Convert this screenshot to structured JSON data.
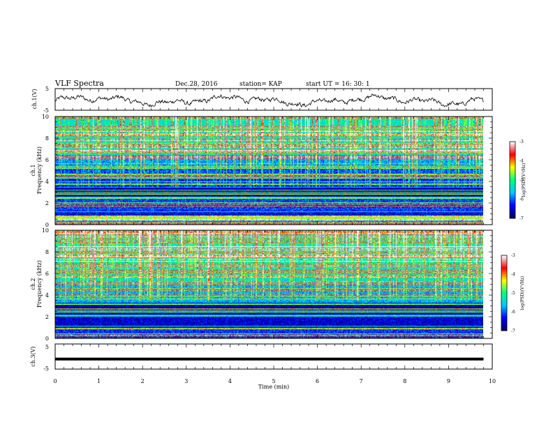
{
  "header": {
    "title": "VLF Spectra",
    "date": "Dec.28, 2016",
    "station": "station= KAP",
    "start": "start  UT =   16: 30: 1"
  },
  "chart_data": [
    {
      "type": "line",
      "name": "ch1-waveform",
      "ylabel": "ch.1(V)",
      "ylim": [
        -5,
        5
      ],
      "yticks": [
        "5",
        "-5"
      ],
      "xlim": [
        0,
        10
      ],
      "note_wave": "noisy waveform oscillating roughly between -3 and +2 V"
    },
    {
      "type": "heatmap",
      "name": "ch1-spectrogram",
      "ylabel_top": "ch.1",
      "ylabel": "Frequency (kHz)",
      "ylim": [
        0,
        10
      ],
      "yticks": [
        "0",
        "2",
        "4",
        "6",
        "8",
        "10"
      ],
      "xlim": [
        0,
        10
      ],
      "colorbar": {
        "label": "log(PSD)(V²/Hz)",
        "ticks": [
          "-3",
          "-4",
          "-5",
          "-6",
          "-7"
        ],
        "range": [
          -7,
          -3
        ]
      }
    },
    {
      "type": "heatmap",
      "name": "ch2-spectrogram",
      "ylabel_top": "ch.2",
      "ylabel": "Frequency (kHz)",
      "ylim": [
        0,
        10
      ],
      "yticks": [
        "0",
        "2",
        "4",
        "6",
        "8",
        "10"
      ],
      "xlim": [
        0,
        10
      ],
      "colorbar": {
        "label": "log(PSD)(V²/Hz)",
        "ticks": [
          "-3",
          "-4",
          "-5",
          "-6",
          "-7"
        ],
        "range": [
          -7,
          -3
        ]
      }
    },
    {
      "type": "line",
      "name": "ch3-waveform",
      "ylabel": "ch.3(V)",
      "ylim": [
        -5,
        5
      ],
      "yticks": [
        "5",
        "-5"
      ],
      "xlim": [
        0,
        10
      ],
      "values_constant": -1
    }
  ],
  "xaxis": {
    "label": "Time (min)",
    "ticks": [
      "0",
      "1",
      "2",
      "3",
      "4",
      "5",
      "6",
      "7",
      "8",
      "9",
      "10"
    ],
    "data_end": 9.8
  },
  "colors": {
    "axis": "#000000",
    "cmap": [
      "#000064",
      "#0000ff",
      "#00c8ff",
      "#00ff80",
      "#ffff00",
      "#ff0000",
      "#ffffff"
    ]
  }
}
